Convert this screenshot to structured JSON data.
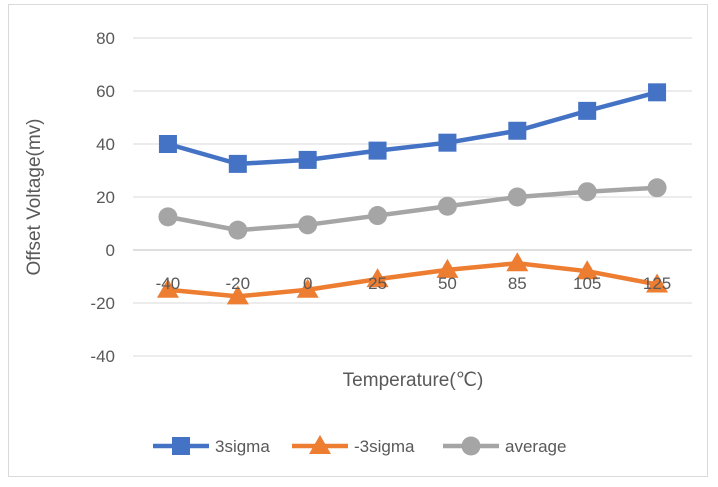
{
  "chart_data": {
    "type": "line",
    "title": "",
    "xlabel": "Temperature(℃)",
    "ylabel": "Offset Voltage(mv)",
    "categories": [
      "-40",
      "-20",
      "0",
      "25",
      "50",
      "85",
      "105",
      "125"
    ],
    "ylim": [
      -40,
      80
    ],
    "yticks": [
      80,
      60,
      40,
      20,
      0,
      -20,
      -40
    ],
    "grid": true,
    "legend_position": "bottom",
    "series": [
      {
        "name": "3sigma",
        "values": [
          40,
          32.5,
          34,
          37.5,
          40.5,
          45,
          52.5,
          59.5
        ],
        "color": "#4472C4",
        "marker": "square"
      },
      {
        "name": "-3sigma",
        "values": [
          -15,
          -17.5,
          -15,
          -11,
          -7.5,
          -5,
          -8,
          -13
        ],
        "color": "#ED7D31",
        "marker": "triangle"
      },
      {
        "name": "average",
        "values": [
          12.5,
          7.5,
          9.5,
          13,
          16.5,
          20,
          22,
          23.5
        ],
        "color": "#A5A5A5",
        "marker": "circle"
      }
    ]
  }
}
